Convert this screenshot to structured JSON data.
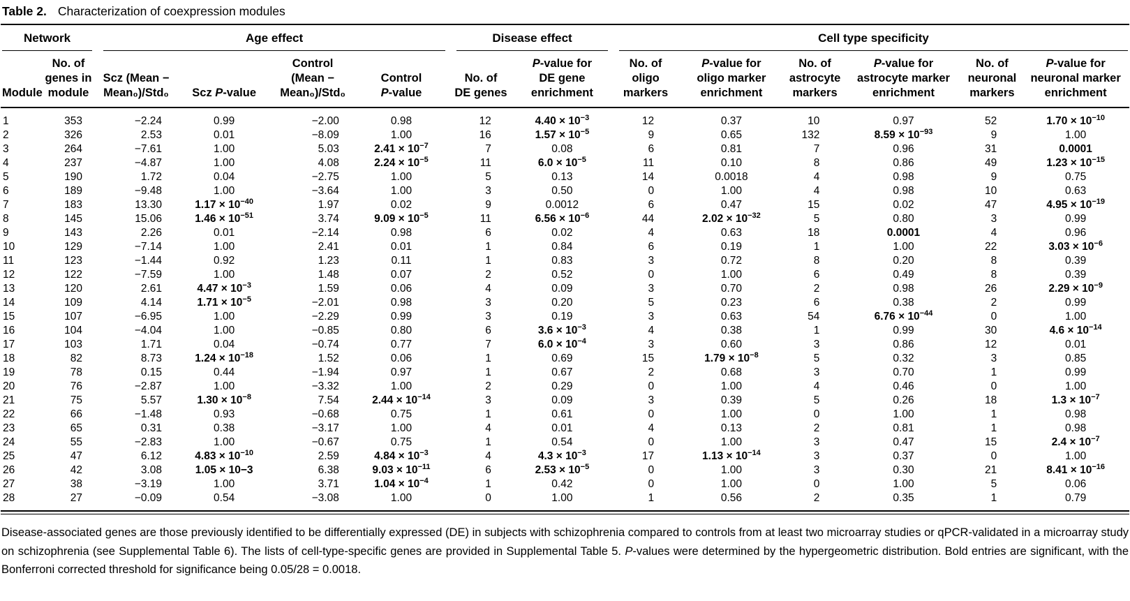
{
  "title": {
    "label": "Table 2.",
    "text": "Characterization of coexpression modules"
  },
  "groups": [
    "Network",
    "Age effect",
    "Disease effect",
    "Cell type specificity"
  ],
  "columns": [
    "Module",
    "No. of\ngenes in\nmodule",
    "Scz (Mean −\nMean₀)/Std₀",
    "Scz P-value",
    "Control\n(Mean −\nMean₀)/Std₀",
    "Control\nP-value",
    "No. of\nDE genes",
    "P-value for\nDE gene\nenrichment",
    "No. of oligo\nmarkers",
    "P-value for\noligo marker\nenrichment",
    "No. of\nastrocyte\nmarkers",
    "P-value for\nastrocyte marker\nenrichment",
    "No. of\nneuronal\nmarkers",
    "P-value for\nneuronal marker\nenrichment"
  ],
  "rows": [
    [
      "1",
      "353",
      "−2.24",
      "0.99",
      "−2.00",
      "0.98",
      "12",
      "**4.40 × 10^−3",
      "12",
      "0.37",
      "10",
      "0.97",
      "52",
      "**1.70 × 10^−10"
    ],
    [
      "2",
      "326",
      "2.53",
      "0.01",
      "−8.09",
      "1.00",
      "16",
      "**1.57 × 10^−5",
      "9",
      "0.65",
      "132",
      "**8.59 × 10^−93",
      "9",
      "1.00"
    ],
    [
      "3",
      "264",
      "−7.61",
      "1.00",
      "5.03",
      "**2.41 × 10^−7",
      "7",
      "0.08",
      "6",
      "0.81",
      "7",
      "0.96",
      "31",
      "**0.0001"
    ],
    [
      "4",
      "237",
      "−4.87",
      "1.00",
      "4.08",
      "**2.24 × 10^−5",
      "11",
      "**6.0 × 10^−5",
      "11",
      "0.10",
      "8",
      "0.86",
      "49",
      "**1.23 × 10^−15"
    ],
    [
      "5",
      "190",
      "1.72",
      "0.04",
      "−2.75",
      "1.00",
      "5",
      "0.13",
      "14",
      "0.0018",
      "4",
      "0.98",
      "9",
      "0.75"
    ],
    [
      "6",
      "189",
      "−9.48",
      "1.00",
      "−3.64",
      "1.00",
      "3",
      "0.50",
      "0",
      "1.00",
      "4",
      "0.98",
      "10",
      "0.63"
    ],
    [
      "7",
      "183",
      "13.30",
      "**1.17 × 10^−40",
      "1.97",
      "0.02",
      "9",
      "0.0012",
      "6",
      "0.47",
      "15",
      "0.02",
      "47",
      "**4.95 × 10^−19"
    ],
    [
      "8",
      "145",
      "15.06",
      "**1.46 × 10^−51",
      "3.74",
      "**9.09 × 10^−5",
      "11",
      "**6.56 × 10^−6",
      "44",
      "**2.02 × 10^−32",
      "5",
      "0.80",
      "3",
      "0.99"
    ],
    [
      "9",
      "143",
      "2.26",
      "0.01",
      "−2.14",
      "0.98",
      "6",
      "0.02",
      "4",
      "0.63",
      "18",
      "**0.0001",
      "4",
      "0.96"
    ],
    [
      "10",
      "129",
      "−7.14",
      "1.00",
      "2.41",
      "0.01",
      "1",
      "0.84",
      "6",
      "0.19",
      "1",
      "1.00",
      "22",
      "**3.03 × 10^−6"
    ],
    [
      "11",
      "123",
      "−1.44",
      "0.92",
      "1.23",
      "0.11",
      "1",
      "0.83",
      "3",
      "0.72",
      "8",
      "0.20",
      "8",
      "0.39"
    ],
    [
      "12",
      "122",
      "−7.59",
      "1.00",
      "1.48",
      "0.07",
      "2",
      "0.52",
      "0",
      "1.00",
      "6",
      "0.49",
      "8",
      "0.39"
    ],
    [
      "13",
      "120",
      "2.61",
      "**4.47 × 10^−3",
      "1.59",
      "0.06",
      "4",
      "0.09",
      "3",
      "0.70",
      "2",
      "0.98",
      "26",
      "**2.29 × 10^−9"
    ],
    [
      "14",
      "109",
      "4.14",
      "**1.71 × 10^−5",
      "−2.01",
      "0.98",
      "3",
      "0.20",
      "5",
      "0.23",
      "6",
      "0.38",
      "2",
      "0.99"
    ],
    [
      "15",
      "107",
      "−6.95",
      "1.00",
      "−2.29",
      "0.99",
      "3",
      "0.19",
      "3",
      "0.63",
      "54",
      "**6.76 × 10^−44",
      "0",
      "1.00"
    ],
    [
      "16",
      "104",
      "−4.04",
      "1.00",
      "−0.85",
      "0.80",
      "6",
      "**3.6 × 10^−3",
      "4",
      "0.38",
      "1",
      "0.99",
      "30",
      "**4.6 × 10^−14"
    ],
    [
      "17",
      "103",
      "1.71",
      "0.04",
      "−0.74",
      "0.77",
      "7",
      "**6.0 × 10^−4",
      "3",
      "0.60",
      "3",
      "0.86",
      "12",
      "0.01"
    ],
    [
      "18",
      "82",
      "8.73",
      "**1.24 × 10^−18",
      "1.52",
      "0.06",
      "1",
      "0.69",
      "15",
      "**1.79 × 10^−8",
      "5",
      "0.32",
      "3",
      "0.85"
    ],
    [
      "19",
      "78",
      "0.15",
      "0.44",
      "−1.94",
      "0.97",
      "1",
      "0.67",
      "2",
      "0.68",
      "3",
      "0.70",
      "1",
      "0.99"
    ],
    [
      "20",
      "76",
      "−2.87",
      "1.00",
      "−3.32",
      "1.00",
      "2",
      "0.29",
      "0",
      "1.00",
      "4",
      "0.46",
      "0",
      "1.00"
    ],
    [
      "21",
      "75",
      "5.57",
      "**1.30 × 10^−8",
      "7.54",
      "**2.44 × 10^−14",
      "3",
      "0.09",
      "3",
      "0.39",
      "5",
      "0.26",
      "18",
      "**1.3 × 10^−7"
    ],
    [
      "22",
      "66",
      "−1.48",
      "0.93",
      "−0.68",
      "0.75",
      "1",
      "0.61",
      "0",
      "1.00",
      "0",
      "1.00",
      "1",
      "0.98"
    ],
    [
      "23",
      "65",
      "0.31",
      "0.38",
      "−3.17",
      "1.00",
      "4",
      "0.01",
      "4",
      "0.13",
      "2",
      "0.81",
      "1",
      "0.98"
    ],
    [
      "24",
      "55",
      "−2.83",
      "1.00",
      "−0.67",
      "0.75",
      "1",
      "0.54",
      "0",
      "1.00",
      "3",
      "0.47",
      "15",
      "**2.4 × 10^−7"
    ],
    [
      "25",
      "47",
      "6.12",
      "**4.83 × 10^−10",
      "2.59",
      "**4.84 × 10^−3",
      "4",
      "**4.3 × 10^−3",
      "17",
      "**1.13 × 10^−14",
      "3",
      "0.37",
      "0",
      "1.00"
    ],
    [
      "26",
      "42",
      "3.08",
      "**1.05 × 10−3",
      "6.38",
      "**9.03 × 10^−11",
      "6",
      "**2.53 × 10^−5",
      "0",
      "1.00",
      "3",
      "0.30",
      "21",
      "**8.41 × 10^−16"
    ],
    [
      "27",
      "38",
      "−3.19",
      "1.00",
      "3.71",
      "**1.04 × 10^−4",
      "1",
      "0.42",
      "0",
      "1.00",
      "0",
      "1.00",
      "5",
      "0.06"
    ],
    [
      "28",
      "27",
      "−0.09",
      "0.54",
      "−3.08",
      "1.00",
      "0",
      "1.00",
      "1",
      "0.56",
      "2",
      "0.35",
      "1",
      "0.79"
    ]
  ],
  "footnote": "Disease-associated genes are those previously identified to be differentially expressed (DE) in subjects with schizophrenia compared to controls from at least two microarray studies or qPCR-validated in a microarray study on schizophrenia (see Supplemental Table 6). The lists of cell-type-specific genes are provided in Supplemental Table 5. P-values were determined by the hypergeometric distribution. Bold entries are significant, with the Bonferroni corrected threshold for significance being 0.05/28 = 0.0018."
}
